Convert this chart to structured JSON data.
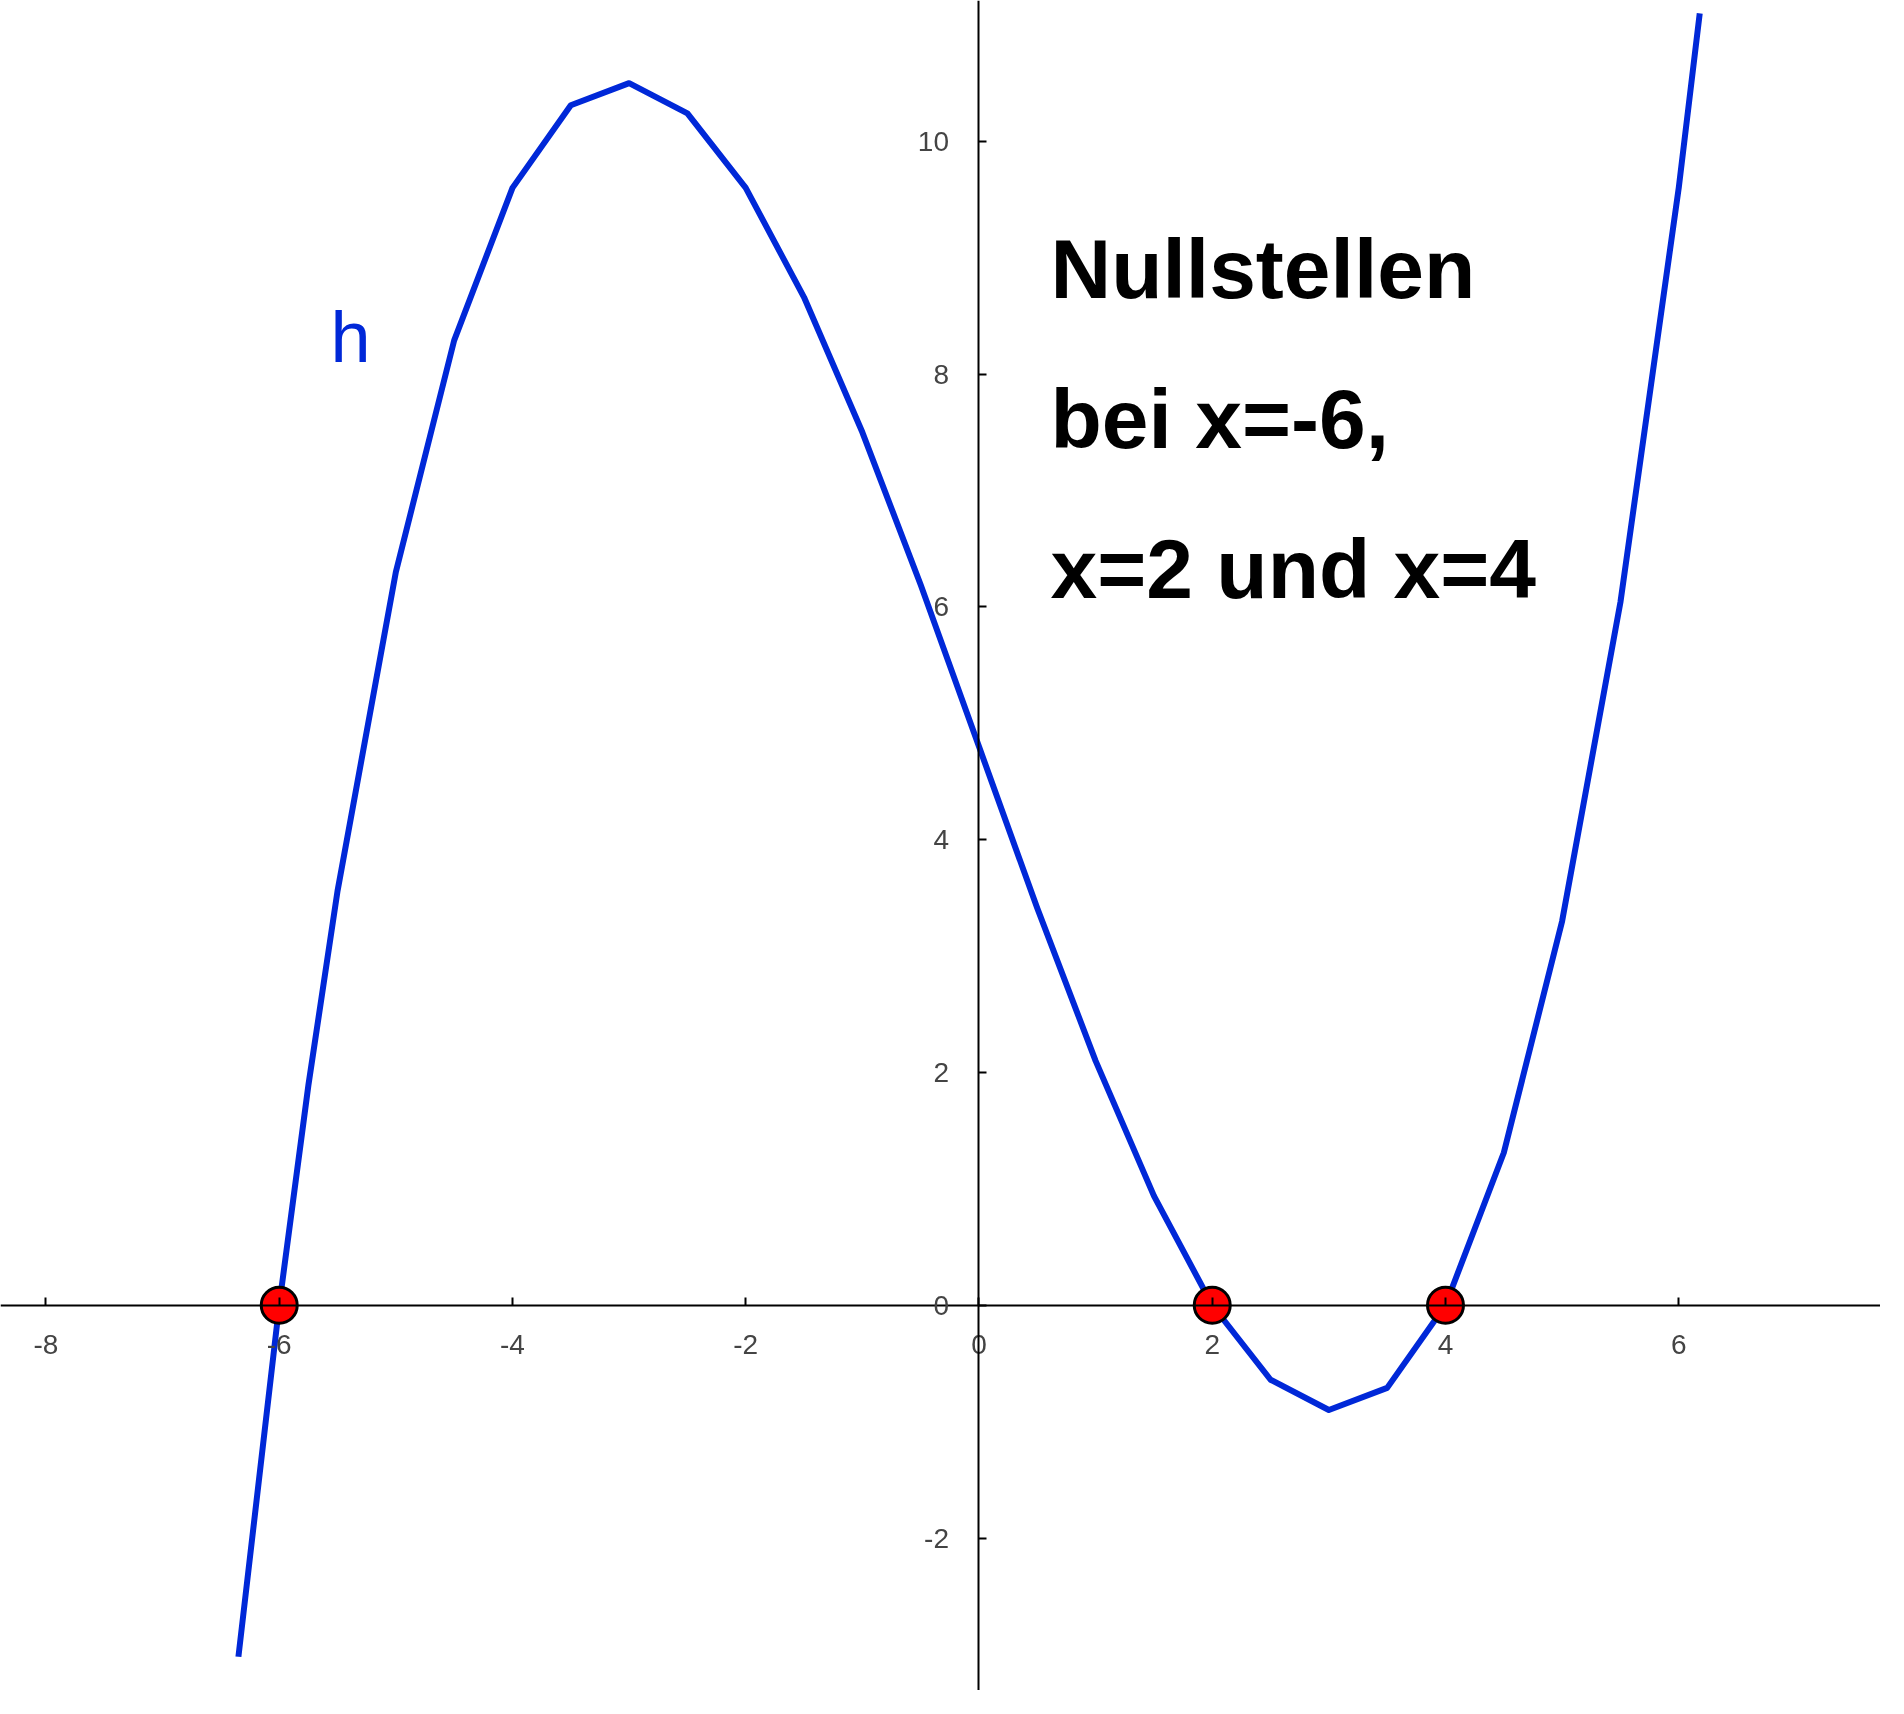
{
  "chart_data": {
    "type": "line",
    "xlim": [
      -8.39,
      7.73
    ],
    "ylim": [
      -3.31,
      11.21
    ],
    "xticks": [
      -8,
      -6,
      -4,
      -2,
      0,
      2,
      4,
      6
    ],
    "yticks": [
      -2,
      0,
      2,
      4,
      6,
      8,
      10
    ],
    "grid": false,
    "annotations": [
      "Nullstellen\nbei x=-6,\nx=2 und x=4"
    ],
    "series": [
      {
        "name": "h",
        "color": "#0028d8",
        "x": [
          -6.35,
          -6,
          -5.75,
          -5.5,
          -5,
          -4.5,
          -4,
          -3.5,
          -3,
          -2.5,
          -2,
          -1.5,
          -1,
          -0.5,
          0,
          0.5,
          1,
          1.5,
          2,
          2.5,
          3,
          3.5,
          4,
          4.5,
          5,
          5.5,
          6,
          6.18
        ],
        "values": [
          -3.02,
          0,
          1.89,
          3.56,
          6.3,
          8.29,
          9.6,
          10.31,
          10.5,
          10.24,
          9.6,
          8.66,
          7.5,
          6.19,
          4.8,
          3.41,
          2.1,
          0.94,
          0,
          -0.64,
          -0.9,
          -0.71,
          0,
          1.31,
          3.3,
          6.04,
          9.6,
          11.1
        ]
      },
      {
        "color": "#ff0000",
        "type": "scatter",
        "marker": "circle",
        "x": [
          -6,
          2,
          4
        ],
        "values": [
          0,
          0,
          0
        ]
      }
    ]
  }
}
